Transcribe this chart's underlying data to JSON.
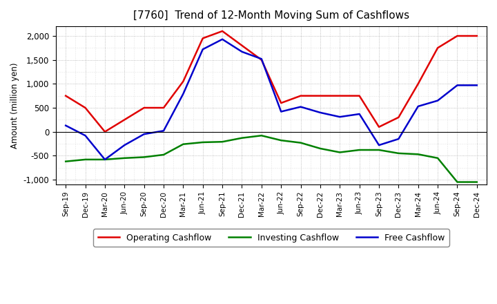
{
  "title": "[7760]  Trend of 12-Month Moving Sum of Cashflows",
  "ylabel": "Amount (million yen)",
  "xlabels": [
    "Sep-19",
    "Dec-19",
    "Mar-20",
    "Jun-20",
    "Sep-20",
    "Dec-20",
    "Mar-21",
    "Jun-21",
    "Sep-21",
    "Dec-21",
    "Mar-22",
    "Jun-22",
    "Sep-22",
    "Dec-22",
    "Mar-23",
    "Jun-23",
    "Sep-23",
    "Dec-23",
    "Mar-24",
    "Jun-24",
    "Sep-24",
    "Dec-24"
  ],
  "operating": [
    750,
    500,
    0,
    250,
    500,
    500,
    1050,
    1950,
    2100,
    1800,
    1500,
    600,
    750,
    750,
    750,
    750,
    100,
    300,
    1000,
    1750,
    2000,
    2000
  ],
  "investing": [
    -620,
    -580,
    -580,
    -550,
    -530,
    -480,
    -260,
    -220,
    -210,
    -130,
    -80,
    -180,
    -230,
    -350,
    -430,
    -380,
    -380,
    -450,
    -470,
    -550,
    -1050,
    -1050
  ],
  "free": [
    130,
    -80,
    -580,
    -280,
    -50,
    20,
    790,
    1720,
    1930,
    1670,
    1520,
    420,
    520,
    400,
    310,
    370,
    -280,
    -150,
    530,
    650,
    970,
    970
  ],
  "operating_color": "#e00000",
  "investing_color": "#008000",
  "free_color": "#0000cc",
  "background_color": "#ffffff",
  "plot_bg_color": "#ffffff",
  "ylim": [
    -1100,
    2200
  ],
  "yticks": [
    -1000,
    -500,
    0,
    500,
    1000,
    1500,
    2000
  ],
  "grid_color": "#aaaaaa",
  "legend_labels": [
    "Operating Cashflow",
    "Investing Cashflow",
    "Free Cashflow"
  ]
}
